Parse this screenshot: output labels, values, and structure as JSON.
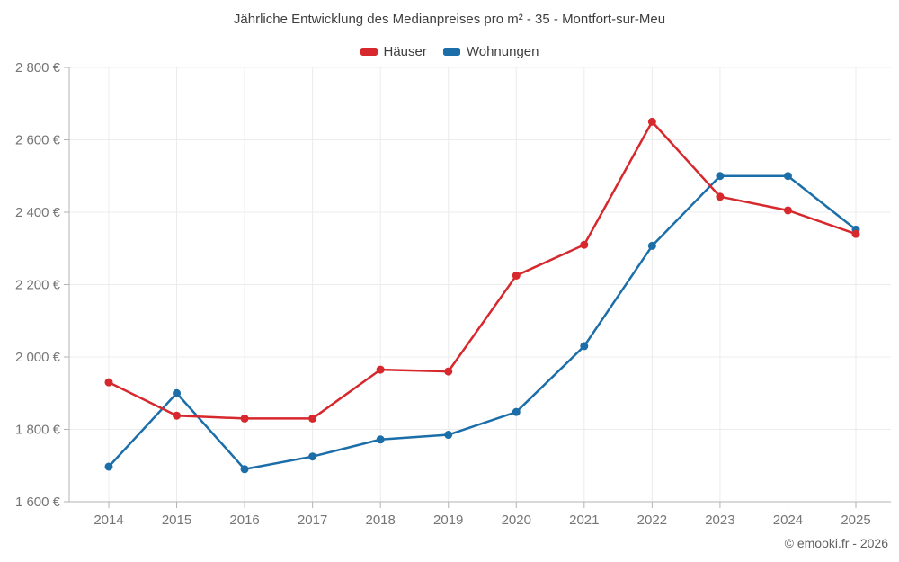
{
  "footer": {
    "text": "© emooki.fr - 2026"
  },
  "chart_data": {
    "type": "line",
    "title": "Jährliche Entwicklung des Medianpreises pro m² - 35 - Montfort-sur-Meu",
    "categories": [
      "2014",
      "2015",
      "2016",
      "2017",
      "2018",
      "2019",
      "2020",
      "2021",
      "2022",
      "2023",
      "2024",
      "2025"
    ],
    "series": [
      {
        "name": "Häuser",
        "slug": "haeuser",
        "color": "#d7282d",
        "values": [
          1930,
          1838,
          1830,
          1830,
          1965,
          1960,
          2225,
          2310,
          2650,
          2443,
          2405,
          2340
        ]
      },
      {
        "name": "Wohnungen",
        "slug": "wohnungen",
        "color": "#1c6ea9",
        "values": [
          1697,
          1900,
          1690,
          1725,
          1772,
          1785,
          1848,
          2030,
          2307,
          2500,
          2500,
          2352
        ]
      }
    ],
    "xlabel": "",
    "ylabel": "",
    "ylim": [
      1600,
      2800
    ],
    "y_ticks": [
      {
        "value": 1600,
        "label": "1 600 €"
      },
      {
        "value": 1800,
        "label": "1 800 €"
      },
      {
        "value": 2000,
        "label": "2 000 €"
      },
      {
        "value": 2200,
        "label": "2 200 €"
      },
      {
        "value": 2400,
        "label": "2 400 €"
      },
      {
        "value": 2600,
        "label": "2 600 €"
      },
      {
        "value": 2800,
        "label": "2 800 €"
      }
    ],
    "grid": true,
    "legend_position": "top",
    "colors": {
      "grid": "#ececec",
      "axis": "#b3b3b3",
      "tick_text": "#757575",
      "title_text": "#3e3e3e"
    }
  }
}
